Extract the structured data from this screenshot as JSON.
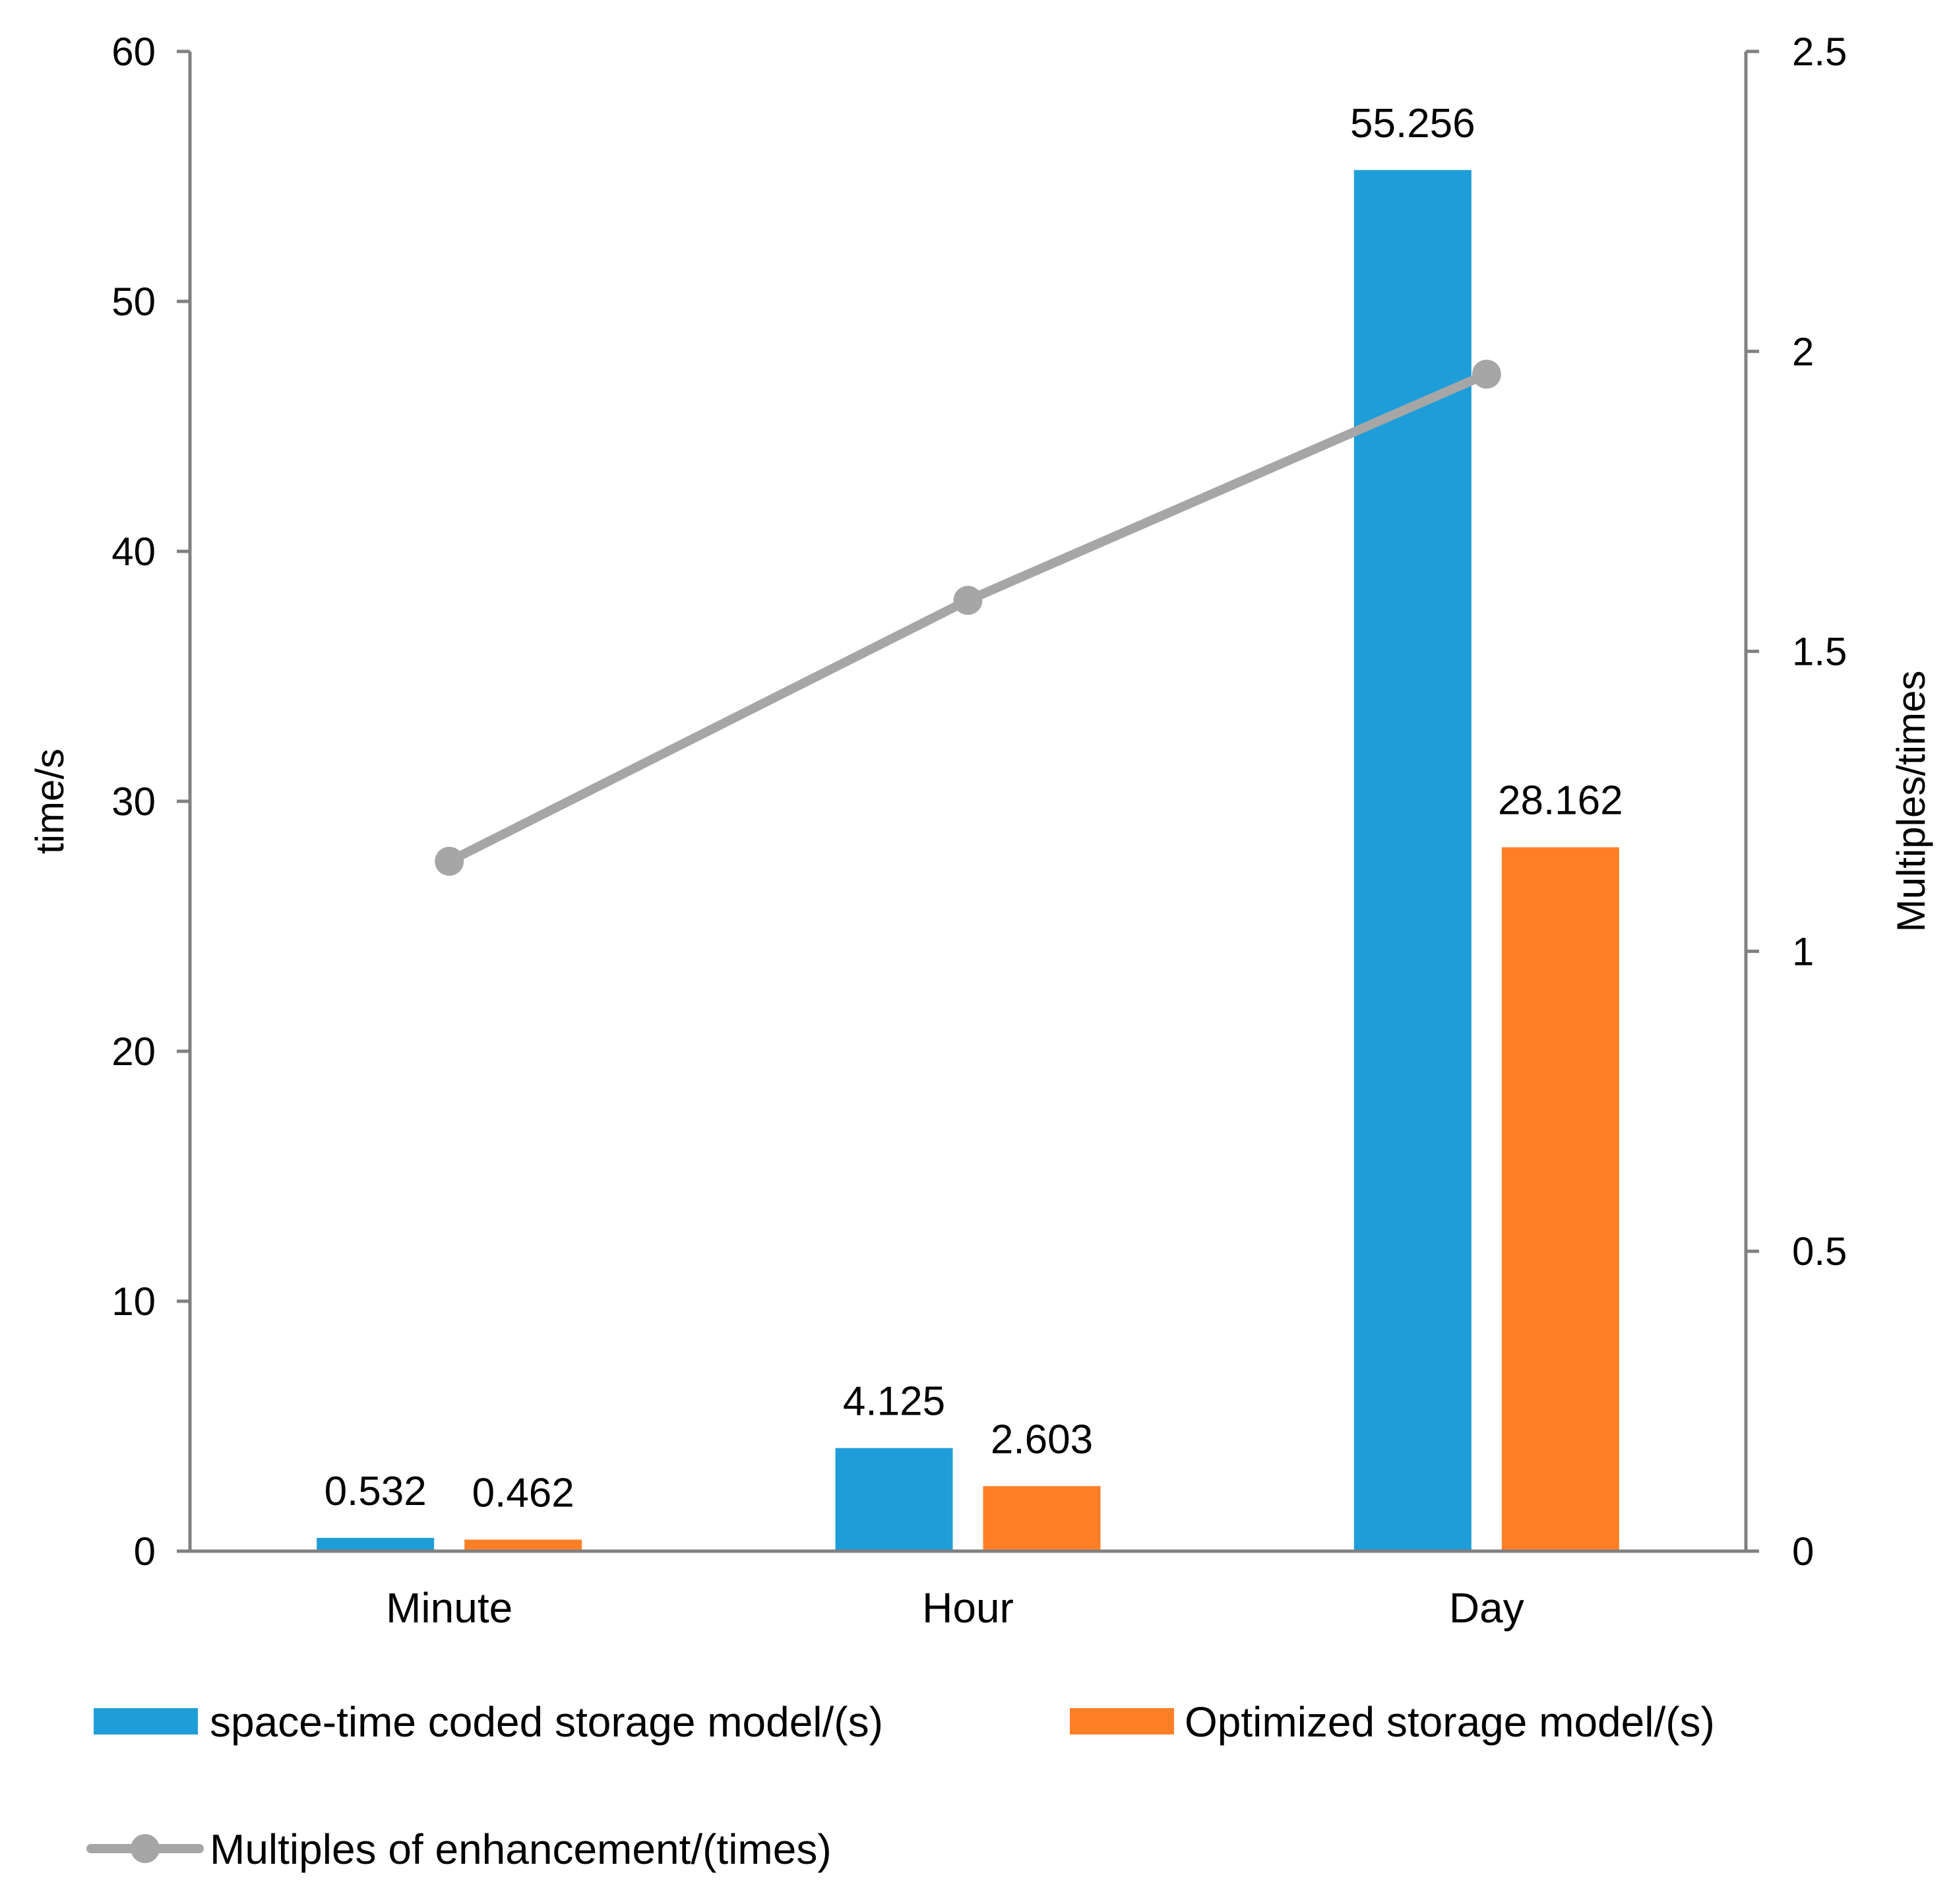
{
  "chart_data": {
    "type": "bar",
    "categories": [
      "Minute",
      "Hour",
      "Day"
    ],
    "series": [
      {
        "name": "space-time coded storage model/(s)",
        "type": "bar",
        "axis": "left",
        "color": "#1F9DD9",
        "values": [
          0.532,
          4.125,
          55.256
        ],
        "labels": [
          "0.532",
          "4.125",
          "55.256"
        ]
      },
      {
        "name": "Optimized storage model/(s)",
        "type": "bar",
        "axis": "left",
        "color": "#FF7F27",
        "values": [
          0.462,
          2.603,
          28.162
        ],
        "labels": [
          "0.462",
          "2.603",
          "28.162"
        ]
      },
      {
        "name": "Multiples of enhancement/(times)",
        "type": "line",
        "axis": "right",
        "color": "#A6A6A6",
        "values": [
          1.15,
          1.585,
          1.962
        ]
      }
    ],
    "ylabel": "time/s",
    "ylim": [
      0,
      60
    ],
    "yticks": [
      "0",
      "10",
      "20",
      "30",
      "40",
      "50",
      "60"
    ],
    "y2label": "Multiples/times",
    "y2lim": [
      0,
      2.5
    ],
    "y2ticks": [
      "0",
      "0.5",
      "1",
      "1.5",
      "2",
      "2.5"
    ],
    "grid": false,
    "legend_position": "bottom"
  }
}
